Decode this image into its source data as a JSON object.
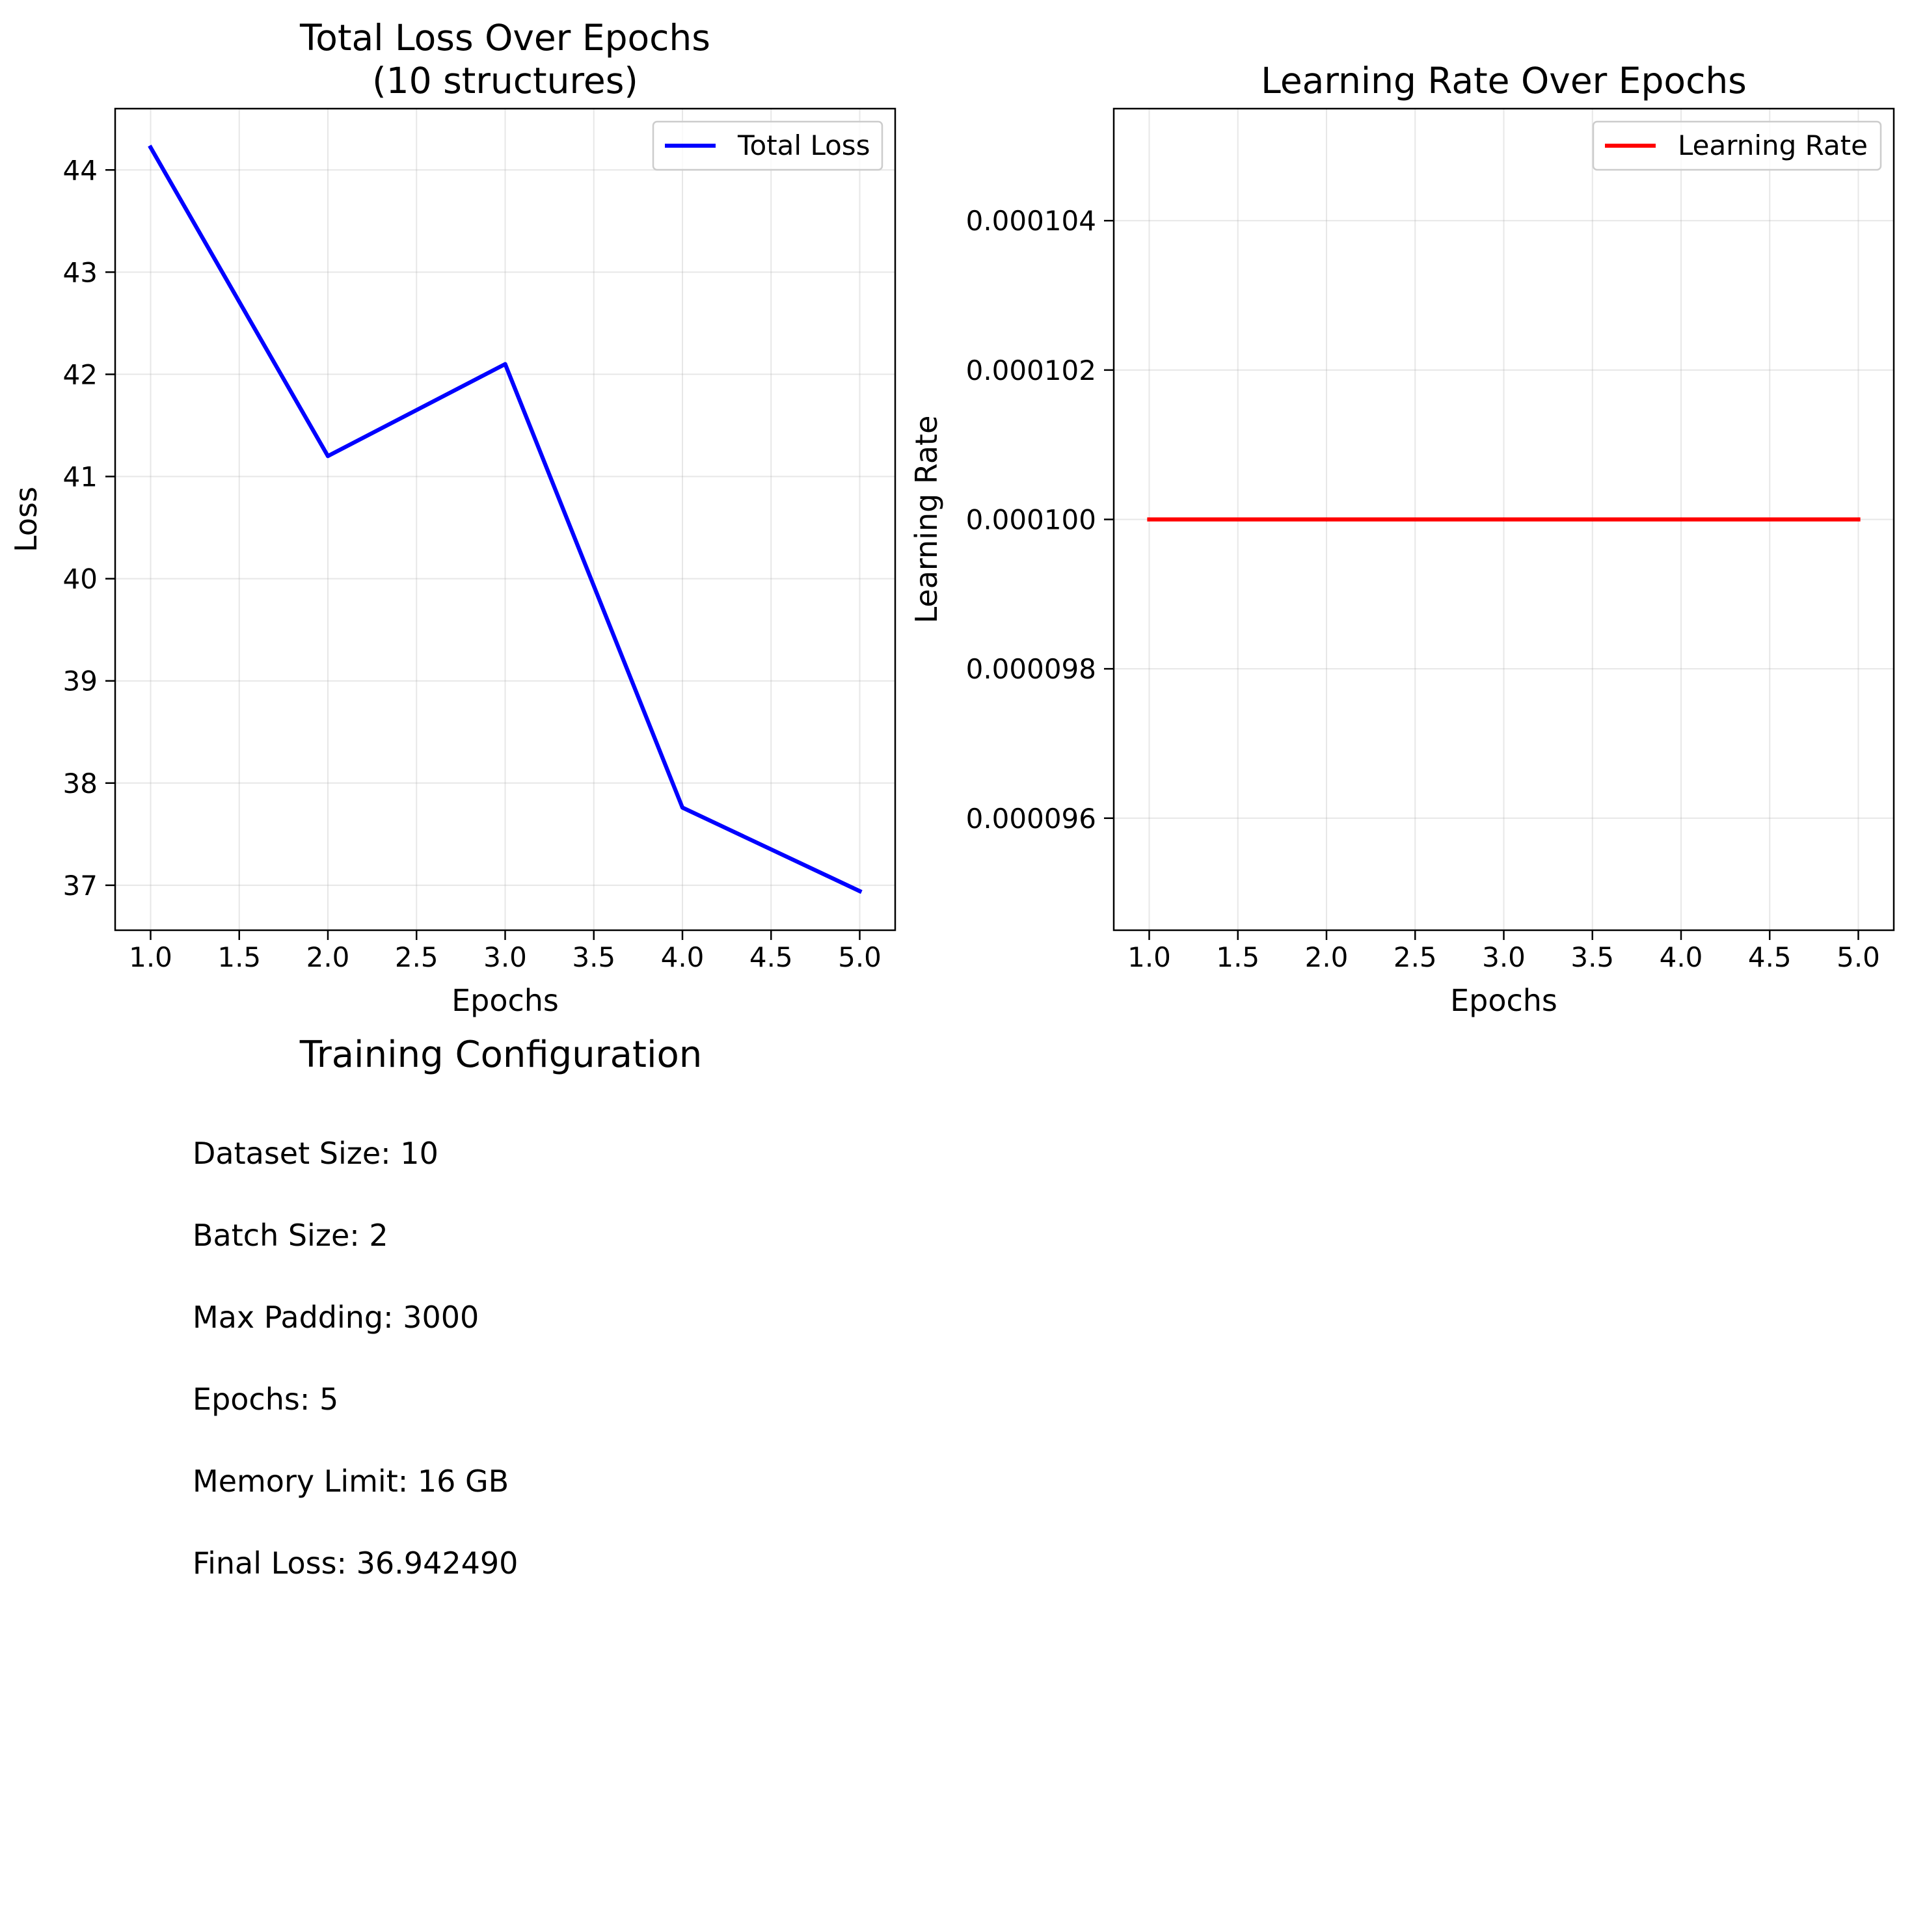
{
  "chart_data": [
    {
      "type": "line",
      "title": "Total Loss Over Epochs\n(10 structures)",
      "title_lines": [
        "Total Loss Over Epochs",
        "(10 structures)"
      ],
      "xlabel": "Epochs",
      "ylabel": "Loss",
      "x": [
        1,
        2,
        3,
        4,
        5
      ],
      "series": [
        {
          "name": "Total Loss",
          "color": "#0000ff",
          "values": [
            44.22,
            41.2,
            42.1,
            37.76,
            36.94249
          ]
        }
      ],
      "xlim": [
        0.8,
        5.2
      ],
      "ylim": [
        36.56,
        44.6
      ],
      "xticks": [
        1.0,
        1.5,
        2.0,
        2.5,
        3.0,
        3.5,
        4.0,
        4.5,
        5.0
      ],
      "xtick_labels": [
        "1.0",
        "1.5",
        "2.0",
        "2.5",
        "3.0",
        "3.5",
        "4.0",
        "4.5",
        "5.0"
      ],
      "yticks": [
        37,
        38,
        39,
        40,
        41,
        42,
        43,
        44
      ],
      "ytick_labels": [
        "37",
        "38",
        "39",
        "40",
        "41",
        "42",
        "43",
        "44"
      ],
      "grid": true,
      "legend": "upper right"
    },
    {
      "type": "line",
      "title": "Learning Rate Over Epochs",
      "title_lines": [
        "Learning Rate Over Epochs"
      ],
      "xlabel": "Epochs",
      "ylabel": "Learning Rate",
      "x": [
        1,
        2,
        3,
        4,
        5
      ],
      "series": [
        {
          "name": "Learning Rate",
          "color": "#ff0000",
          "values": [
            0.0001,
            0.0001,
            0.0001,
            0.0001,
            0.0001
          ]
        }
      ],
      "xlim": [
        0.8,
        5.2
      ],
      "ylim": [
        9.45e-05,
        0.0001055
      ],
      "xticks": [
        1.0,
        1.5,
        2.0,
        2.5,
        3.0,
        3.5,
        4.0,
        4.5,
        5.0
      ],
      "xtick_labels": [
        "1.0",
        "1.5",
        "2.0",
        "2.5",
        "3.0",
        "3.5",
        "4.0",
        "4.5",
        "5.0"
      ],
      "yticks": [
        9.6e-05,
        9.8e-05,
        0.0001,
        0.000102,
        0.000104
      ],
      "ytick_labels": [
        "0.000096",
        "0.000098",
        "0.000100",
        "0.000102",
        "0.000104"
      ],
      "grid": true,
      "legend": "upper right"
    }
  ],
  "config": {
    "title": "Training Configuration",
    "items": [
      "Dataset Size: 10",
      "Batch Size: 2",
      "Max Padding: 3000",
      "Epochs: 5",
      "Memory Limit: 16 GB",
      "Final Loss: 36.942490"
    ]
  }
}
